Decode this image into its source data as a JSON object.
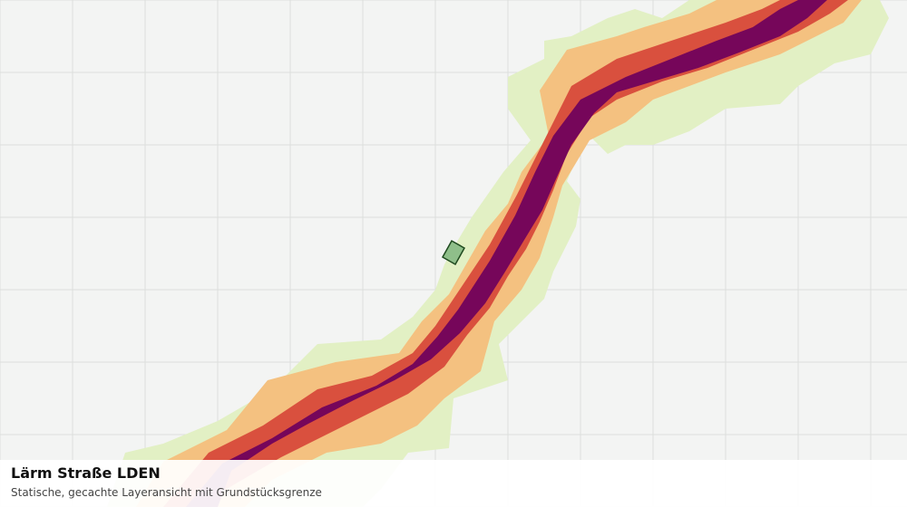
{
  "map": {
    "background_color": "#f3f4f3",
    "grid_color": "#dcdedc",
    "noise_bands": [
      {
        "name": "outer",
        "color": "#e2f0c4"
      },
      {
        "name": "low",
        "color": "#f4c180"
      },
      {
        "name": "mid",
        "color": "#d9503e"
      },
      {
        "name": "core",
        "color": "#76065a"
      }
    ],
    "parcel": {
      "fill": "#8fbf8a",
      "stroke": "#1f4a1f"
    }
  },
  "caption": {
    "title": "Lärm Straße LDEN",
    "subtitle": "Statische, gecachte Layeransicht mit Grundstücksgrenze"
  }
}
